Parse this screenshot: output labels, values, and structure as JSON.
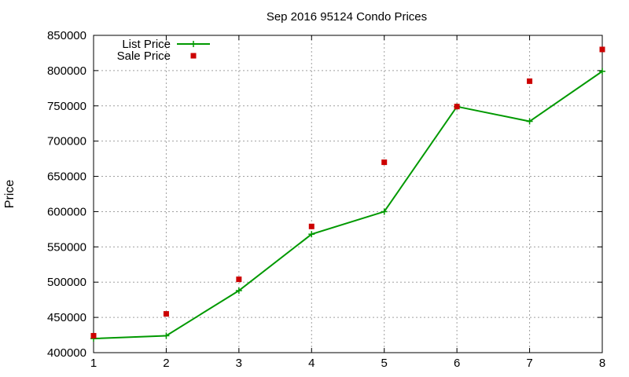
{
  "chart_data": {
    "type": "line",
    "title": "Sep 2016 95124 Condo Prices",
    "xlabel": "",
    "ylabel": "Price",
    "x": [
      1,
      2,
      3,
      4,
      5,
      6,
      7,
      8
    ],
    "xlim": [
      1,
      8
    ],
    "ylim": [
      400000,
      850000
    ],
    "xticks": [
      "1",
      "2",
      "3",
      "4",
      "5",
      "6",
      "7",
      "8"
    ],
    "yticks": [
      "400000",
      "450000",
      "500000",
      "550000",
      "600000",
      "650000",
      "700000",
      "750000",
      "800000",
      "850000"
    ],
    "grid": true,
    "legend_position": "top-left",
    "series": [
      {
        "name": "List Price",
        "style": "line-with-plus-markers",
        "color": "#009900",
        "values": [
          420000,
          424000,
          488000,
          568000,
          600000,
          749000,
          728000,
          799000
        ]
      },
      {
        "name": "Sale Price",
        "style": "square-points",
        "color": "#cc0000",
        "values": [
          424000,
          455000,
          504000,
          579000,
          670000,
          749000,
          785000,
          830000
        ]
      }
    ]
  }
}
